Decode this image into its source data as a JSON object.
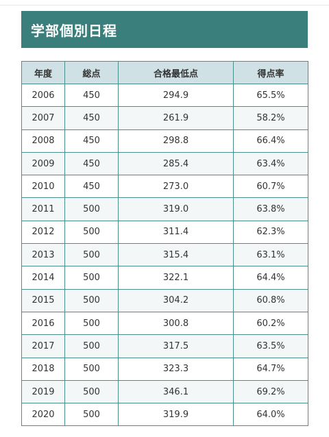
{
  "title": "学部個別日程",
  "table": {
    "headers": [
      "年度",
      "総点",
      "合格最低点",
      "得点率"
    ],
    "rows": [
      [
        "2006",
        "450",
        "294.9",
        "65.5%"
      ],
      [
        "2007",
        "450",
        "261.9",
        "58.2%"
      ],
      [
        "2008",
        "450",
        "298.8",
        "66.4%"
      ],
      [
        "2009",
        "450",
        "285.4",
        "63.4%"
      ],
      [
        "2010",
        "450",
        "273.0",
        "60.7%"
      ],
      [
        "2011",
        "500",
        "319.0",
        "63.8%"
      ],
      [
        "2012",
        "500",
        "311.4",
        "62.3%"
      ],
      [
        "2013",
        "500",
        "315.4",
        "63.1%"
      ],
      [
        "2014",
        "500",
        "322.1",
        "64.4%"
      ],
      [
        "2015",
        "500",
        "304.2",
        "60.8%"
      ],
      [
        "2016",
        "500",
        "300.8",
        "60.2%"
      ],
      [
        "2017",
        "500",
        "317.5",
        "63.5%"
      ],
      [
        "2018",
        "500",
        "323.3",
        "64.7%"
      ],
      [
        "2019",
        "500",
        "346.1",
        "69.2%"
      ],
      [
        "2020",
        "500",
        "319.9",
        "64.0%"
      ]
    ]
  },
  "colors": {
    "title_bg": "#3a7f7c",
    "header_bg": "#cfe1e4",
    "border": "#4a8f8c",
    "stripe": "#f3f7f7"
  }
}
